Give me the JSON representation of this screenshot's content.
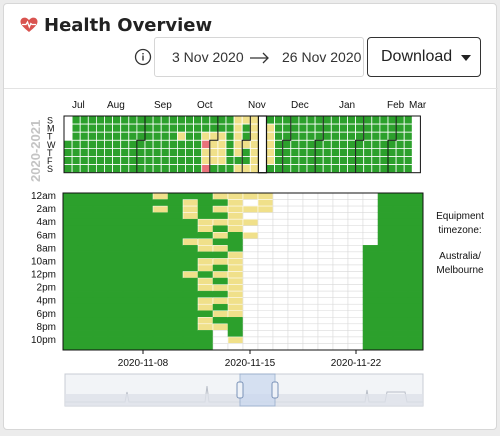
{
  "header": {
    "title": "Health Overview",
    "icon": "heart-pulse-icon",
    "accent": "#d9534f"
  },
  "date_range": {
    "start": "3 Nov 2020",
    "end": "26 Nov 2020"
  },
  "download_label": "Download",
  "year_label": "2020-2021",
  "month_labels": [
    "Jul",
    "Aug",
    "Sep",
    "Oct",
    "Nov",
    "Dec",
    "Jan",
    "Feb",
    "Mar"
  ],
  "weekday_labels": [
    "S",
    "M",
    "T",
    "W",
    "T",
    "F",
    "S"
  ],
  "hour_labels": [
    "12am",
    "2am",
    "4am",
    "6am",
    "8am",
    "10am",
    "12pm",
    "2pm",
    "4pm",
    "6pm",
    "8pm",
    "10pm"
  ],
  "date_ticks": [
    "2020-11-08",
    "2020-11-15",
    "2020-11-22"
  ],
  "timezone": {
    "label": "Equipment timezone:",
    "value": "Australia/ Melbourne"
  },
  "colors": {
    "ok": "#2ca02c",
    "warning": "#f0e08a",
    "error": "#e8727a",
    "missing": "#ffffff"
  }
}
